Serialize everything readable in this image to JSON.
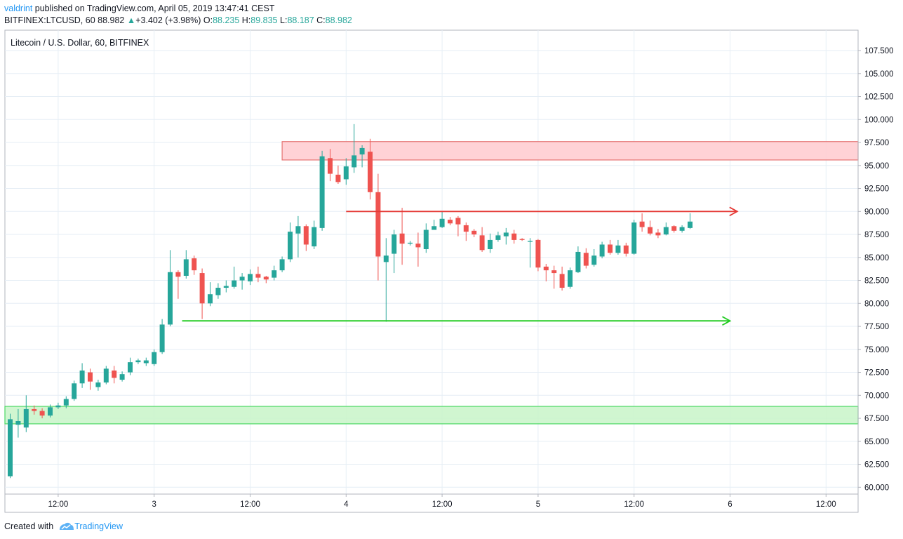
{
  "header": {
    "user": "valdrint",
    "published_text": "published on TradingView.com, April 05, 2019 13:47:41 CEST",
    "symbol": "BITFINEX:LTCUSD, 60",
    "last": "88.982",
    "change": "+3.402 (+3.98%)",
    "o_label": "O:",
    "o_val": "88.235",
    "h_label": "H:",
    "h_val": "89.835",
    "l_label": "L:",
    "l_val": "88.187",
    "c_label": "C:",
    "c_val": "88.982"
  },
  "chart_title": "Litecoin / U.S. Dollar, 60, BITFINEX",
  "footer": {
    "created_with": "Created with",
    "brand": "TradingView"
  },
  "colors": {
    "up": "#26a69a",
    "down": "#ef5350",
    "grid": "#e6eef5",
    "resistance_fill": "#ffcdd2",
    "support_fill": "#c8f5c8",
    "red_line": "#e53935",
    "green_line": "#22cc22"
  },
  "chart_data": {
    "type": "candlestick",
    "title": "Litecoin / U.S. Dollar, 60, BITFINEX",
    "ylim": [
      59.0,
      109.0
    ],
    "x_hour_range": [
      -1.0,
      105.0
    ],
    "y_ticks": [
      "60.000",
      "62.500",
      "65.000",
      "67.500",
      "70.000",
      "72.500",
      "75.000",
      "77.500",
      "80.000",
      "82.500",
      "85.000",
      "87.500",
      "90.000",
      "92.500",
      "95.000",
      "97.500",
      "100.000",
      "102.500",
      "105.000",
      "107.500"
    ],
    "x_ticks": [
      {
        "hour": 6,
        "label": "12:00"
      },
      {
        "hour": 18,
        "label": "3"
      },
      {
        "hour": 30,
        "label": "12:00"
      },
      {
        "hour": 42,
        "label": "4"
      },
      {
        "hour": 54,
        "label": "12:00"
      },
      {
        "hour": 66,
        "label": "5"
      },
      {
        "hour": 78,
        "label": "12:00"
      },
      {
        "hour": 90,
        "label": "6"
      },
      {
        "hour": 102,
        "label": "12:00"
      }
    ],
    "candles": [
      [
        0,
        61.2,
        67.4,
        61.0,
        68.0
      ],
      [
        1,
        66.8,
        67.2,
        65.4,
        68.5
      ],
      [
        2,
        66.5,
        68.5,
        66.0,
        70.0
      ],
      [
        3,
        68.5,
        68.3,
        67.9,
        68.9
      ],
      [
        4,
        68.3,
        67.8,
        67.5,
        68.6
      ],
      [
        5,
        67.8,
        68.7,
        67.6,
        69.0
      ],
      [
        6,
        68.7,
        68.9,
        68.5,
        69.2
      ],
      [
        7,
        68.9,
        69.6,
        68.6,
        69.9
      ],
      [
        8,
        69.6,
        71.3,
        69.4,
        71.6
      ],
      [
        9,
        71.3,
        72.7,
        70.8,
        73.5
      ],
      [
        10,
        72.5,
        71.5,
        70.6,
        72.9
      ],
      [
        11,
        70.9,
        71.4,
        70.5,
        71.7
      ],
      [
        12,
        71.4,
        72.9,
        71.2,
        73.2
      ],
      [
        13,
        72.7,
        71.9,
        71.3,
        73.2
      ],
      [
        14,
        71.7,
        72.3,
        71.5,
        72.6
      ],
      [
        15,
        72.5,
        73.6,
        72.2,
        74.1
      ],
      [
        16,
        73.6,
        73.8,
        73.4,
        74.0
      ],
      [
        17,
        73.5,
        73.8,
        73.2,
        74.1
      ],
      [
        18,
        73.4,
        74.7,
        73.2,
        75.0
      ],
      [
        19,
        74.7,
        77.7,
        74.5,
        78.3
      ],
      [
        20,
        77.7,
        83.4,
        77.5,
        85.8
      ],
      [
        21,
        83.4,
        82.9,
        80.5,
        83.6
      ],
      [
        22,
        83.0,
        84.8,
        82.7,
        85.8
      ],
      [
        23,
        84.9,
        83.6,
        83.1,
        85.2
      ],
      [
        24,
        83.3,
        80.0,
        78.3,
        83.8
      ],
      [
        25,
        80.0,
        81.0,
        79.7,
        82.3
      ],
      [
        26,
        80.9,
        81.7,
        80.5,
        82.2
      ],
      [
        27,
        81.7,
        81.9,
        81.2,
        82.5
      ],
      [
        28,
        81.8,
        82.5,
        81.6,
        84.0
      ],
      [
        29,
        82.5,
        82.9,
        81.5,
        83.3
      ],
      [
        30,
        82.4,
        83.2,
        82.0,
        83.7
      ],
      [
        31,
        83.2,
        82.8,
        82.3,
        84.0
      ],
      [
        32,
        82.9,
        82.6,
        82.2,
        83.0
      ],
      [
        33,
        82.8,
        83.6,
        82.5,
        84.1
      ],
      [
        34,
        83.6,
        84.8,
        83.4,
        85.1
      ],
      [
        35,
        84.8,
        87.8,
        84.5,
        88.8
      ],
      [
        36,
        87.6,
        88.4,
        85.0,
        89.5
      ],
      [
        37,
        88.4,
        86.4,
        85.7,
        88.6
      ],
      [
        38,
        86.2,
        88.3,
        85.9,
        89.0
      ],
      [
        39,
        88.2,
        96.0,
        87.9,
        96.6
      ],
      [
        40,
        95.8,
        94.1,
        93.3,
        96.8
      ],
      [
        41,
        94.0,
        93.2,
        93.0,
        95.0
      ],
      [
        42,
        93.5,
        94.9,
        92.9,
        95.8
      ],
      [
        43,
        94.8,
        96.1,
        94.2,
        99.5
      ],
      [
        44,
        96.2,
        96.9,
        94.8,
        97.2
      ],
      [
        45,
        96.5,
        92.1,
        91.3,
        97.9
      ],
      [
        46,
        92.1,
        85.1,
        82.5,
        94.1
      ],
      [
        47,
        84.5,
        85.2,
        78.0,
        87.1
      ],
      [
        48,
        85.4,
        87.5,
        83.3,
        88.0
      ],
      [
        49,
        87.6,
        86.5,
        84.2,
        90.4
      ],
      [
        50,
        86.5,
        86.6,
        86.3,
        86.8
      ],
      [
        51,
        86.5,
        86.1,
        84.0,
        87.7
      ],
      [
        52,
        85.9,
        88.0,
        85.5,
        88.7
      ],
      [
        53,
        88.0,
        88.4,
        88.0,
        89.1
      ],
      [
        54,
        88.3,
        89.2,
        88.2,
        90.0
      ],
      [
        55,
        89.1,
        88.7,
        88.5,
        89.4
      ],
      [
        56,
        89.3,
        88.6,
        87.3,
        89.5
      ],
      [
        57,
        88.5,
        87.8,
        86.8,
        88.8
      ],
      [
        58,
        87.9,
        87.5,
        87.2,
        88.1
      ],
      [
        59,
        87.4,
        85.8,
        85.6,
        88.3
      ],
      [
        60,
        85.9,
        86.9,
        85.5,
        87.6
      ],
      [
        61,
        86.9,
        87.4,
        86.7,
        87.8
      ],
      [
        62,
        87.3,
        87.7,
        86.4,
        88.2
      ],
      [
        63,
        87.6,
        86.9,
        86.5,
        88.0
      ],
      [
        64,
        87.0,
        86.9,
        86.8,
        87.1
      ],
      [
        65,
        86.7,
        86.8,
        83.9,
        87.1
      ],
      [
        66,
        86.9,
        83.9,
        83.5,
        87.0
      ],
      [
        67,
        84.0,
        83.6,
        82.4,
        84.3
      ],
      [
        68,
        83.6,
        83.3,
        81.6,
        84.1
      ],
      [
        69,
        83.2,
        81.7,
        81.4,
        84.0
      ],
      [
        70,
        81.8,
        83.6,
        81.6,
        83.9
      ],
      [
        71,
        83.4,
        85.6,
        83.3,
        86.2
      ],
      [
        72,
        85.5,
        84.1,
        83.8,
        86.0
      ],
      [
        73,
        84.2,
        85.2,
        84.0,
        85.9
      ],
      [
        74,
        85.1,
        86.4,
        84.9,
        86.7
      ],
      [
        75,
        86.4,
        85.5,
        85.3,
        86.9
      ],
      [
        76,
        85.5,
        86.3,
        85.3,
        86.9
      ],
      [
        77,
        86.3,
        85.4,
        85.1,
        86.6
      ],
      [
        78,
        85.4,
        88.8,
        85.3,
        89.1
      ],
      [
        79,
        88.9,
        88.3,
        87.8,
        89.8
      ],
      [
        80,
        88.3,
        87.6,
        87.4,
        89.0
      ],
      [
        81,
        87.7,
        87.4,
        87.1,
        88.1
      ],
      [
        82,
        87.5,
        88.3,
        87.4,
        88.8
      ],
      [
        83,
        88.4,
        87.9,
        87.7,
        88.5
      ],
      [
        84,
        87.9,
        88.3,
        87.7,
        88.5
      ],
      [
        85,
        88.2,
        88.9,
        88.1,
        89.8
      ]
    ],
    "annotations": {
      "resistance_zone": {
        "y_from": 95.6,
        "y_to": 97.6,
        "x_hour_from": 34
      },
      "support_zone": {
        "y_from": 66.9,
        "y_to": 68.8,
        "x_hour_from": -1
      },
      "red_line": {
        "y": 90.0,
        "x_hour_from": 42,
        "x_hour_to": 90.9
      },
      "green_line": {
        "y": 78.1,
        "x_hour_from": 21.5,
        "x_hour_to": 90
      }
    },
    "gridlines": true
  }
}
